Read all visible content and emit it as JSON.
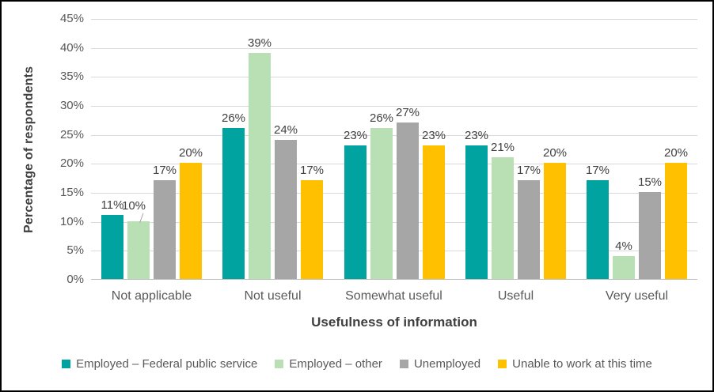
{
  "chart_data": {
    "type": "bar",
    "title": "",
    "xlabel": "Usefulness of information",
    "ylabel": "Percentage of respondents",
    "categories": [
      "Not applicable",
      "Not useful",
      "Somewhat useful",
      "Useful",
      "Very useful"
    ],
    "series": [
      {
        "name": "Employed – Federal public service",
        "color": "#00A3A0",
        "values": [
          11,
          26,
          23,
          23,
          17
        ]
      },
      {
        "name": "Employed – other",
        "color": "#B9E0B4",
        "values": [
          10,
          39,
          26,
          21,
          4
        ]
      },
      {
        "name": "Unemployed",
        "color": "#A6A6A6",
        "values": [
          17,
          24,
          27,
          17,
          15
        ]
      },
      {
        "name": "Unable to work at this time",
        "color": "#FFC000",
        "values": [
          20,
          17,
          23,
          20,
          20
        ]
      }
    ],
    "ylim": [
      0,
      45
    ],
    "ytick_step": 5,
    "tick_suffix": "%",
    "data_label_suffix": "%",
    "grid": true,
    "legend_position": "bottom",
    "callout": {
      "category_index": 0,
      "series_index": 1
    }
  },
  "colors": {
    "gridline": "#D9D9D9",
    "axis_line": "#BFBFBF",
    "tick_text": "#595959",
    "label_text": "#404040",
    "frame_border": "#000000",
    "background": "#FFFFFF"
  }
}
